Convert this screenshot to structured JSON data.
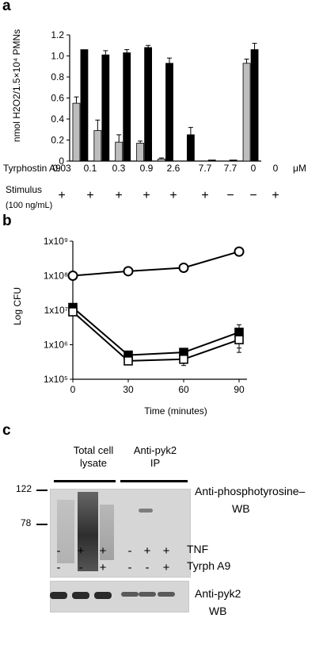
{
  "panels": {
    "a": {
      "letter": "a"
    },
    "b": {
      "letter": "b"
    },
    "c": {
      "letter": "c"
    }
  },
  "chart_data": [
    {
      "type": "bar",
      "ylabel": "nmol H2O2/1.5×10⁴ PMNs",
      "ylim": [
        0,
        1.2
      ],
      "yticks": [
        "0",
        "0.2",
        "0.4",
        "0.6",
        "0.8",
        "1.0",
        "1.2"
      ],
      "categories": [
        "0.03",
        "0.1",
        "0.3",
        "0.9",
        "2.6",
        "7.7",
        "7.7",
        "0",
        "0"
      ],
      "unit": "μM",
      "row_labels": {
        "tyrphostin": "Tyrphostin A9",
        "stimulus_line1": "Stimulus",
        "stimulus_line2": "(100 ng/mL)"
      },
      "stimulus": [
        "+",
        "+",
        "+",
        "+",
        "+",
        "+",
        "−",
        "−",
        "+"
      ],
      "series": [
        {
          "color": "#bdbdbd",
          "values": [
            0.55,
            0.29,
            0.18,
            0.17,
            0.02,
            0.0,
            0.0,
            0.0,
            0.93
          ],
          "errors": [
            0.06,
            0.1,
            0.07,
            0.02,
            0.01,
            0.0,
            0.0,
            0.0,
            0.04
          ]
        },
        {
          "color": "#000000",
          "values": [
            1.06,
            1.01,
            1.03,
            1.08,
            0.93,
            0.25,
            0.01,
            0.01,
            1.06
          ],
          "errors": [
            0.0,
            0.04,
            0.03,
            0.02,
            0.05,
            0.07,
            0.0,
            0.0,
            0.06
          ]
        }
      ]
    },
    {
      "type": "line",
      "ylabel": "Log CFU",
      "xlabel": "Time (minutes)",
      "yscale": "log",
      "yticks": [
        "1x10⁵",
        "1x10⁶",
        "1x10⁷",
        "1x10⁸",
        "1x10⁹"
      ],
      "x": [
        0,
        30,
        60,
        90
      ],
      "xticks": [
        "0",
        "30",
        "60",
        "90"
      ],
      "series": [
        {
          "marker": "open-circle",
          "values": [
            100000000,
            135000000,
            170000000,
            500000000
          ],
          "errors": [
            0,
            0,
            0,
            0
          ]
        },
        {
          "marker": "filled-square",
          "values": [
            12000000,
            500000,
            600000,
            2300000
          ],
          "errors": [
            2000000,
            80000,
            100000,
            1500000
          ]
        },
        {
          "marker": "open-square",
          "values": [
            9000000,
            340000,
            380000,
            1400000
          ],
          "errors": [
            1500000,
            50000,
            130000,
            800000
          ]
        }
      ]
    }
  ],
  "blot": {
    "groups": [
      {
        "line1": "Total cell",
        "line2": "lysate"
      },
      {
        "line1": "Anti-pyk2",
        "line2": "IP"
      }
    ],
    "mw_markers": [
      "122",
      "78"
    ],
    "top_label": {
      "line1": "Anti-phosphotyrosine–",
      "line2": "WB"
    },
    "bottom_label": {
      "line1": "Anti-pyk2",
      "line2": "WB"
    },
    "tnf_label": "TNF",
    "tyrph_label": "Tyrph A9",
    "tnf_signs": [
      "-",
      "+",
      "+",
      "-",
      "+",
      "+"
    ],
    "tyrph_signs": [
      "-",
      "-",
      "+",
      "-",
      "-",
      "+"
    ]
  }
}
